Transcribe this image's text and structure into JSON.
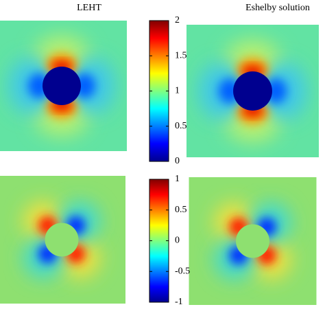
{
  "titles": [
    "LEHT",
    "Eshelby solution"
  ],
  "chart_data": [
    {
      "type": "colorbar",
      "colormap": "jet",
      "clim": [
        0,
        2
      ],
      "cticks": [
        0,
        0.5,
        1,
        1.5,
        2
      ]
    },
    {
      "type": "colorbar",
      "colormap": "jet",
      "clim": [
        -1,
        1
      ],
      "cticks": [
        -1,
        -0.5,
        0,
        0.5,
        1
      ]
    }
  ]
}
